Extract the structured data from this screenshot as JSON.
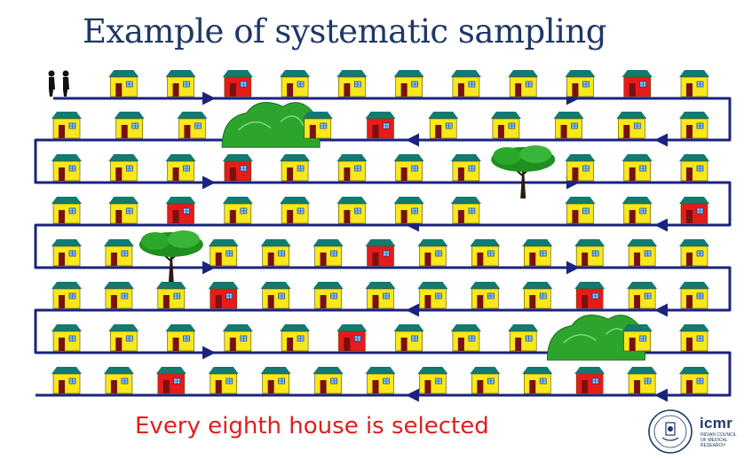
{
  "title": "Example of systematic sampling",
  "caption": "Every eighth house is selected",
  "logo": {
    "brand": "icmr",
    "subtitle": "INDIAN COUNCIL OF MEDICAL RESEARCH"
  },
  "colors": {
    "title": "#1F3864",
    "path": "#1a237e",
    "roof": "#127a6e",
    "house_wall": "#f9e81a",
    "selected_wall": "#e81a1a",
    "door": "#7a1010",
    "caption": "#e11d1d"
  },
  "sampling": {
    "interval": 8
  },
  "rows": [
    {
      "items": [
        "walker",
        "house",
        "house",
        "selected",
        "house",
        "house",
        "house",
        "house",
        "house",
        "house",
        "selected",
        "house"
      ]
    },
    {
      "items": [
        "house",
        "house",
        "house",
        "bush-wide",
        "house",
        "selected",
        "house",
        "house",
        "house",
        "house",
        "house"
      ]
    },
    {
      "items": [
        "house",
        "house",
        "house",
        "selected",
        "house",
        "house",
        "house",
        "house",
        "tree",
        "house",
        "house",
        "house"
      ]
    },
    {
      "items": [
        "house",
        "house",
        "selected",
        "house",
        "house",
        "house",
        "house",
        "house",
        "blank",
        "house",
        "house",
        "selected"
      ]
    },
    {
      "items": [
        "house",
        "house",
        "tree",
        "house",
        "house",
        "house",
        "selected",
        "house",
        "house",
        "house",
        "house",
        "house",
        "house"
      ]
    },
    {
      "items": [
        "house",
        "house",
        "house",
        "selected",
        "house",
        "house",
        "house",
        "house",
        "house",
        "house",
        "selected",
        "house",
        "house"
      ]
    },
    {
      "items": [
        "house",
        "house",
        "house",
        "house",
        "house",
        "selected",
        "house",
        "house",
        "house",
        "bush-small",
        "house",
        "house"
      ]
    },
    {
      "items": [
        "house",
        "house",
        "selected",
        "house",
        "house",
        "house",
        "house",
        "house",
        "house",
        "house",
        "selected",
        "house",
        "house"
      ]
    }
  ]
}
